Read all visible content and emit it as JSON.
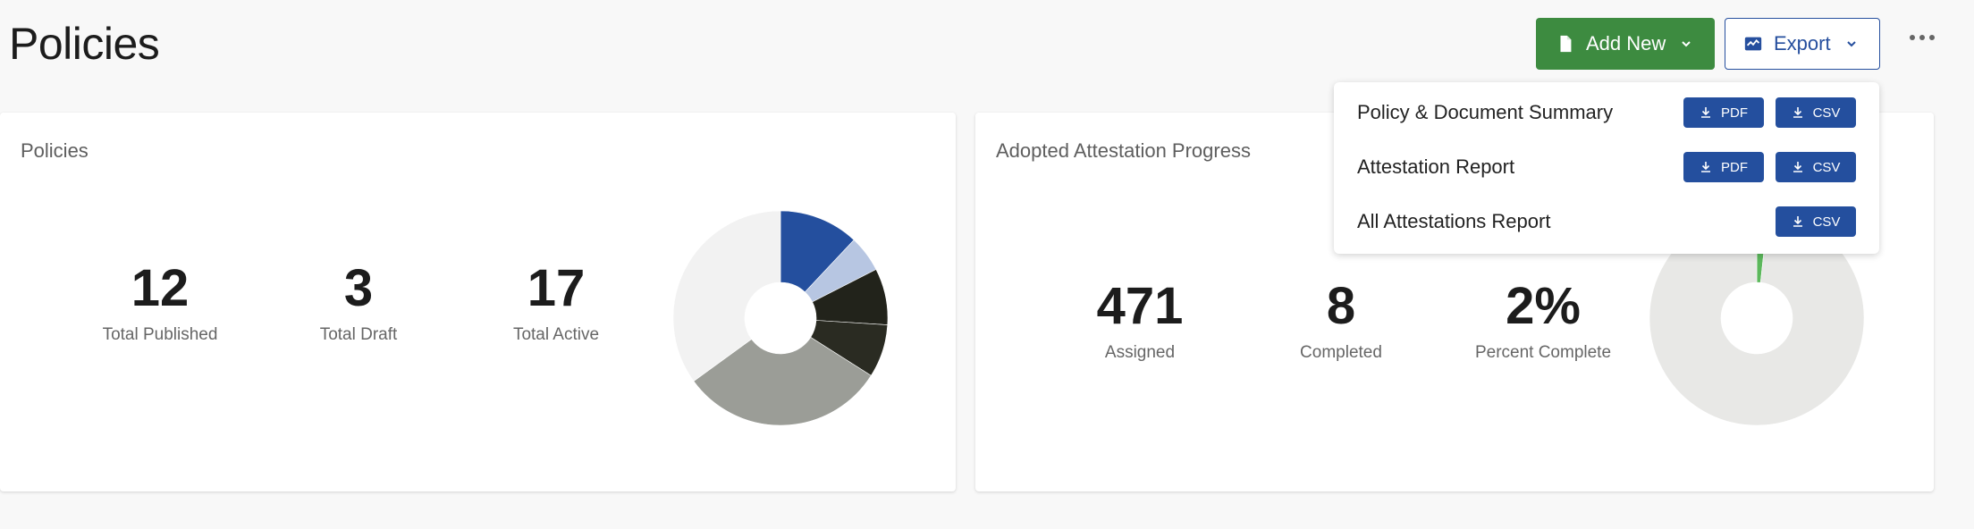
{
  "page": {
    "title": "Policies"
  },
  "toolbar": {
    "add_new_label": "Add New",
    "export_label": "Export"
  },
  "export_menu": {
    "items": [
      {
        "label": "Policy & Document Summary",
        "pdf_label": "PDF",
        "csv_label": "CSV"
      },
      {
        "label": "Attestation Report",
        "pdf_label": "PDF",
        "csv_label": "CSV"
      },
      {
        "label": "All Attestations Report",
        "csv_label": "CSV"
      }
    ]
  },
  "policies_card": {
    "title": "Policies",
    "stats": [
      {
        "value": "12",
        "label": "Total Published"
      },
      {
        "value": "3",
        "label": "Total Draft"
      },
      {
        "value": "17",
        "label": "Total Active"
      }
    ]
  },
  "attestation_card": {
    "title": "Adopted Attestation Progress",
    "stats": [
      {
        "value": "471",
        "label": "Assigned"
      },
      {
        "value": "8",
        "label": "Completed"
      },
      {
        "value": "2%",
        "label": "Percent Complete"
      }
    ]
  },
  "chart_data": [
    {
      "type": "pie",
      "slices": [
        {
          "value": 12.0,
          "color": "#244f9e"
        },
        {
          "value": 5.5,
          "color": "#b7c6e2"
        },
        {
          "value": 8.5,
          "color": "#22231b"
        },
        {
          "value": 8.0,
          "color": "#2a2b22"
        },
        {
          "value": 31.0,
          "color": "#9b9d97"
        },
        {
          "value": 35.0,
          "color": "#f2f2f2"
        }
      ]
    },
    {
      "type": "pie",
      "slices": [
        {
          "value": 1.7,
          "color": "#5cb85c"
        },
        {
          "value": 98.3,
          "color": "#e8e8e6"
        }
      ]
    }
  ],
  "icons": {
    "add_new": "file-icon",
    "export": "export-icon",
    "more": "more-horizontal-icon",
    "download": "download-icon"
  },
  "colors": {
    "primary": "#244f9e",
    "success": "#3d8b40"
  }
}
